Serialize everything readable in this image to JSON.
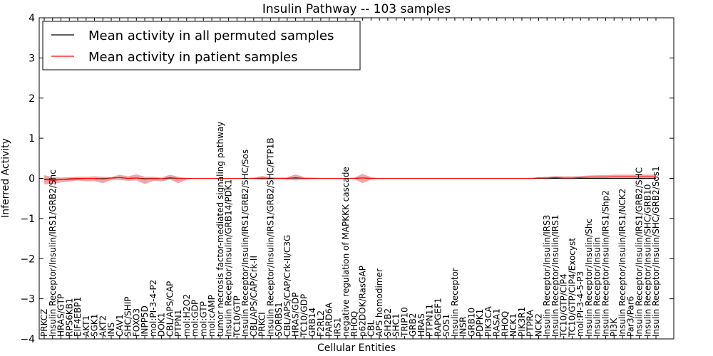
{
  "chart_data": {
    "type": "line",
    "title": "Insulin Pathway -- 103 samples",
    "xlabel": "Cellular Entities",
    "ylabel": "Inferred Activity",
    "ylim": [
      -4,
      4
    ],
    "yticks": [
      "−4",
      "−3",
      "−2",
      "−1",
      "0",
      "1",
      "2",
      "3",
      "4"
    ],
    "grid": false,
    "legend_position": "top-left",
    "colors": {
      "permuted": "#000000",
      "patient": "#ff0000",
      "band": "#f08080"
    },
    "categories": [
      "PRKCZ",
      "Insulin Receptor/Insulin/IRS1/GRB2/Shc",
      "HRAS/GTP",
      "RPS6KB1",
      "EIF4EBP1",
      "AKT1",
      "SGK1",
      "AKT2",
      "INS",
      "CAV1",
      "SHC/SHIP",
      "FOXO3",
      "INPP5D",
      "mol:PI-3-4-P2",
      "DOK1",
      "CBL/APS/CAP",
      "PTPN1",
      "mol:H2O2",
      "mol:GDP",
      "mol:GTP",
      "mol:cAMP",
      "tumor necrosis factor-mediated signaling pathway",
      "Insulin Receptor/Insulin/GRB14/PDK1",
      "TC10/GTP",
      "Insulin Receptor/Insulin/IRS1/GRB2/SHC/Sos",
      "CBL/APS/CAP/Crk-II",
      "PRKCI",
      "Insulin Receptor/Insulin/IRS1/GRB2/SHC/PTP1B",
      "SORBS1",
      "CBL/APS/CAP/Crk-II/C3G",
      "HRAS/GDP",
      "TC10/GDP",
      "GRB14",
      "F2RL2",
      "PARD6A",
      "IRS1",
      "negative regulation of MAPKKK cascade",
      "RHOQ",
      "p62DOK/RasGAP",
      "CBL",
      "APS homodimer",
      "SH2B2",
      "SHC1",
      "TRIP10",
      "GRB2",
      "HRAS",
      "PTPN11",
      "RAPGEF1",
      "SOS1",
      "Insulin Receptor",
      "INSR",
      "GRB10",
      "PDPK1",
      "PIK3CA",
      "RASA1",
      "RHOQ",
      "NCK1",
      "PIK3R1",
      "PTPRA",
      "NCK2",
      "Insulin Receptor/Insulin/IRS3",
      "Insulin Receptor/Insulin/IRS1",
      "TC10/GTP/CIP4",
      "TC10/GTP/CIP4/Exocyst",
      "mol:PI-3-4-5-P3",
      "Insulin Receptor/Insulin/Shc",
      "Insulin Receptor/Insulin",
      "Insulin Receptor/Insulin/IRS1/Shp2",
      "PI3K",
      "Insulin Receptor/Insulin/IRS1/NCK2",
      "Par3/Par6",
      "Insulin Receptor/Insulin/IRS1/GRB2/SHC",
      "Insulin Receptor/Insulin/SHC/GRB10",
      "Insulin Receptor/Insulin/SHC/GRB2/Sos1"
    ],
    "series": [
      {
        "name": "Mean activity in all permuted samples",
        "values": [
          -0.02,
          -0.04,
          -0.03,
          -0.02,
          -0.01,
          0,
          0,
          -0.01,
          0.01,
          0.02,
          0,
          0.01,
          -0.01,
          0,
          -0.01,
          0.01,
          0,
          0,
          0,
          0,
          0,
          0,
          0,
          0,
          0,
          0,
          0,
          0,
          0,
          0,
          0.01,
          0,
          0,
          0,
          0,
          0,
          0,
          0,
          0.01,
          0,
          0,
          0,
          0,
          0,
          0,
          0,
          0,
          0,
          0,
          0,
          0,
          0,
          0,
          0,
          0,
          0,
          0,
          0,
          0,
          0,
          0,
          0,
          0,
          0,
          0,
          0,
          0,
          0,
          0,
          0,
          0,
          0,
          0,
          0
        ]
      },
      {
        "name": "Mean activity in patient samples",
        "values": [
          -0.03,
          -0.05,
          -0.03,
          -0.01,
          0,
          0,
          0,
          -0.02,
          0.01,
          0.02,
          0,
          0.01,
          -0.02,
          0,
          -0.01,
          0.02,
          0,
          0,
          0,
          0,
          0,
          0,
          0,
          0,
          0,
          0,
          0.01,
          0,
          0,
          0,
          0.02,
          0,
          0,
          0,
          0,
          0,
          0,
          0,
          0.01,
          0,
          0,
          0,
          0,
          0,
          0,
          0,
          0,
          0,
          0,
          0,
          0,
          0,
          0,
          0,
          0,
          0,
          0,
          0,
          0,
          0.01,
          0.01,
          0.02,
          0.01,
          0.01,
          0.02,
          0.03,
          0.03,
          0.03,
          0.04,
          0.04,
          0.04,
          0.04,
          0.04,
          0.04
        ],
        "upper": [
          0.08,
          0.03,
          0.02,
          0.03,
          0.04,
          0.04,
          0.05,
          0.04,
          0.03,
          0.09,
          0.05,
          0.1,
          0.04,
          0.04,
          0.02,
          0.09,
          0.04,
          0.01,
          0.01,
          0,
          0,
          0,
          0,
          0.01,
          0.01,
          0.02,
          0.06,
          0.03,
          0.02,
          0.03,
          0.1,
          0.03,
          0.02,
          0.01,
          0.01,
          0,
          0.01,
          0.02,
          0.11,
          0.03,
          0.01,
          0.01,
          0.01,
          0.01,
          0.01,
          0.01,
          0.01,
          0.01,
          0.01,
          0.01,
          0.01,
          0.01,
          0.01,
          0.01,
          0.01,
          0.01,
          0.01,
          0.01,
          0.01,
          0.03,
          0.04,
          0.06,
          0.05,
          0.05,
          0.06,
          0.07,
          0.08,
          0.08,
          0.09,
          0.09,
          0.09,
          0.09,
          0.09,
          0.09
        ],
        "lower": [
          -0.15,
          -0.14,
          -0.1,
          -0.08,
          -0.05,
          -0.07,
          -0.07,
          -0.12,
          -0.04,
          -0.04,
          -0.06,
          -0.05,
          -0.14,
          -0.06,
          -0.07,
          -0.03,
          -0.12,
          -0.03,
          -0.01,
          0,
          0,
          0,
          0,
          -0.01,
          -0.01,
          -0.02,
          -0.04,
          -0.03,
          -0.02,
          -0.03,
          -0.05,
          -0.03,
          -0.02,
          -0.01,
          -0.01,
          0,
          -0.01,
          -0.02,
          -0.12,
          -0.03,
          -0.01,
          -0.01,
          -0.01,
          -0.01,
          -0.01,
          -0.01,
          -0.01,
          -0.01,
          -0.01,
          -0.01,
          -0.01,
          -0.01,
          -0.01,
          -0.01,
          -0.01,
          -0.01,
          -0.01,
          -0.01,
          -0.01,
          -0.01,
          -0.01,
          -0.01,
          -0.01,
          -0.01,
          -0.01,
          -0.01,
          -0.01,
          -0.01,
          -0.01,
          -0.01,
          -0.01,
          -0.01,
          -0.01,
          -0.01
        ]
      }
    ]
  }
}
